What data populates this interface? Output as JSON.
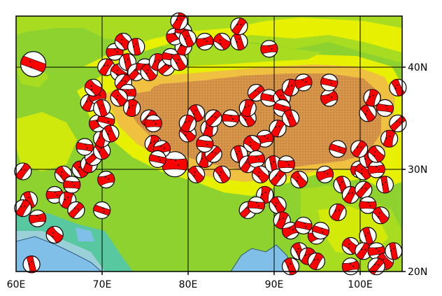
{
  "map": {
    "x_labels": [
      "60E",
      "70E",
      "80E",
      "90E",
      "100E"
    ],
    "y_labels": [
      "40N",
      "30N",
      "20N"
    ],
    "lon_range": [
      60,
      105
    ],
    "lat_range": [
      20,
      45
    ],
    "colors": {
      "ocean": "#7fbfe8",
      "lowland_blue": "#9bd0d8",
      "lowland_teal": "#57c8a0",
      "plain": "#8ed230",
      "hill": "#a8dc20",
      "upland": "#e6f000",
      "mountain": "#f0c040",
      "plateau": "#d7964a",
      "high_plateau": "#c98a48",
      "beachball_fill": "#ff0000",
      "beachball_empty": "#ffffff",
      "outline": "#000000"
    },
    "events": [
      [
        62,
        40.3,
        "large"
      ],
      [
        61.5,
        27,
        "small"
      ],
      [
        60.8,
        26.2,
        "small"
      ],
      [
        62.5,
        25.2,
        "small"
      ],
      [
        64.5,
        23.6,
        "small"
      ],
      [
        61.8,
        20.7,
        "small"
      ],
      [
        60.8,
        29.8,
        "small"
      ],
      [
        64.5,
        27.5,
        "small"
      ],
      [
        65.5,
        29.5,
        "small"
      ],
      [
        66,
        27,
        "small"
      ],
      [
        67,
        26,
        "small"
      ],
      [
        66.5,
        28.5,
        "small"
      ],
      [
        67.5,
        30,
        "small"
      ],
      [
        68.5,
        30.5,
        "small"
      ],
      [
        69,
        31.2,
        "small"
      ],
      [
        68,
        32.2,
        "small"
      ],
      [
        70,
        31.8,
        "small"
      ],
      [
        70,
        33,
        "small"
      ],
      [
        69.5,
        34.5,
        "small"
      ],
      [
        70.5,
        34.8,
        "small"
      ],
      [
        71,
        33.5,
        "small"
      ],
      [
        68.5,
        36.5,
        "small"
      ],
      [
        69.5,
        37.2,
        "small"
      ],
      [
        69,
        38,
        "small"
      ],
      [
        70,
        36,
        "small"
      ],
      [
        70.5,
        40,
        "small"
      ],
      [
        71.5,
        41.5,
        "small"
      ],
      [
        72,
        39.5,
        "small"
      ],
      [
        73,
        40.5,
        "small"
      ],
      [
        72.5,
        38.5,
        "small"
      ],
      [
        73,
        37.5,
        "small"
      ],
      [
        72,
        37,
        "small"
      ],
      [
        73.5,
        36,
        "small"
      ],
      [
        74,
        39.5,
        "small"
      ],
      [
        75,
        40,
        "small"
      ],
      [
        75.5,
        39.5,
        "small"
      ],
      [
        76.5,
        40.5,
        "small"
      ],
      [
        77.5,
        40,
        "small"
      ],
      [
        78,
        41,
        "small"
      ],
      [
        79,
        40.5,
        "small"
      ],
      [
        79.5,
        42,
        "small"
      ],
      [
        78.5,
        43,
        "small"
      ],
      [
        79.5,
        43.5,
        "small"
      ],
      [
        80,
        42.8,
        "small"
      ],
      [
        79,
        44.5,
        "small"
      ],
      [
        82,
        42.5,
        "small"
      ],
      [
        84,
        42.5,
        "small"
      ],
      [
        86,
        42.5,
        "small"
      ],
      [
        86,
        44,
        "small"
      ],
      [
        89.5,
        41.8,
        "small"
      ],
      [
        72.5,
        42.5,
        "small"
      ],
      [
        74,
        42,
        "small"
      ],
      [
        75.5,
        35,
        "small"
      ],
      [
        76,
        34.5,
        "small"
      ],
      [
        80,
        33.5,
        "small"
      ],
      [
        82.5,
        34,
        "small"
      ],
      [
        83,
        35,
        "small"
      ],
      [
        85,
        35,
        "small"
      ],
      [
        87,
        35,
        "small"
      ],
      [
        87,
        36,
        "small"
      ],
      [
        88,
        37.5,
        "small"
      ],
      [
        89.5,
        37,
        "small"
      ],
      [
        91,
        37,
        "small"
      ],
      [
        92,
        38,
        "small"
      ],
      [
        93.5,
        38.5,
        "small"
      ],
      [
        91,
        36,
        "small"
      ],
      [
        92,
        35,
        "small"
      ],
      [
        90.5,
        34,
        "small"
      ],
      [
        89,
        33,
        "small"
      ],
      [
        87.5,
        32.5,
        "small"
      ],
      [
        86,
        31.5,
        "small"
      ],
      [
        87,
        30.5,
        "small"
      ],
      [
        88,
        31,
        "small"
      ],
      [
        88.5,
        29.5,
        "small"
      ],
      [
        90,
        30.5,
        "small"
      ],
      [
        90.5,
        29.2,
        "small"
      ],
      [
        91.5,
        30.5,
        "small"
      ],
      [
        93,
        29,
        "small"
      ],
      [
        89,
        27.5,
        "small"
      ],
      [
        87,
        26,
        "small"
      ],
      [
        88,
        26.5,
        "small"
      ],
      [
        90.5,
        26.5,
        "small"
      ],
      [
        91,
        25,
        "small"
      ],
      [
        92,
        24,
        "small"
      ],
      [
        93.5,
        24.5,
        "small"
      ],
      [
        93,
        22,
        "small"
      ],
      [
        94,
        21.5,
        "small"
      ],
      [
        95,
        23.5,
        "small"
      ],
      [
        95.5,
        24,
        "small"
      ],
      [
        92,
        20.5,
        "small"
      ],
      [
        95,
        21,
        "small"
      ],
      [
        99,
        20.5,
        "small"
      ],
      [
        99,
        22.5,
        "small"
      ],
      [
        101,
        23.5,
        "small"
      ],
      [
        100.5,
        22,
        "small"
      ],
      [
        102,
        22,
        "small"
      ],
      [
        103,
        21,
        "small"
      ],
      [
        104,
        22,
        "small"
      ],
      [
        102,
        20.5,
        "small"
      ],
      [
        78.5,
        30.5,
        "large"
      ],
      [
        81,
        29.5,
        "small"
      ],
      [
        82,
        31,
        "small"
      ],
      [
        83,
        31.5,
        "small"
      ],
      [
        82,
        32.5,
        "small"
      ],
      [
        84,
        29.5,
        "small"
      ],
      [
        76,
        32.5,
        "small"
      ],
      [
        77,
        32,
        "small"
      ],
      [
        76.5,
        31,
        "small"
      ],
      [
        81,
        35.5,
        "small"
      ],
      [
        80,
        34.5,
        "small"
      ],
      [
        96,
        29.5,
        "small"
      ],
      [
        97.5,
        32,
        "small"
      ],
      [
        98,
        28.5,
        "small"
      ],
      [
        99,
        27.5,
        "small"
      ],
      [
        100,
        30,
        "small"
      ],
      [
        100.5,
        29.8,
        "small"
      ],
      [
        101,
        31,
        "small"
      ],
      [
        100,
        32,
        "small"
      ],
      [
        102,
        30,
        "small"
      ],
      [
        102,
        31.5,
        "small"
      ],
      [
        103,
        28.5,
        "small"
      ],
      [
        100.5,
        28,
        "small"
      ],
      [
        101,
        26.5,
        "small"
      ],
      [
        102.5,
        25.5,
        "small"
      ],
      [
        103.5,
        33,
        "small"
      ],
      [
        104.5,
        34.5,
        "small"
      ],
      [
        103,
        36,
        "small"
      ],
      [
        101,
        35.5,
        "small"
      ],
      [
        101.5,
        37,
        "small"
      ],
      [
        96.5,
        37,
        "small"
      ],
      [
        96.5,
        38.5,
        "small"
      ],
      [
        104.5,
        38,
        "small"
      ],
      [
        97.5,
        25.8,
        "small"
      ],
      [
        70.5,
        29,
        "small"
      ],
      [
        70,
        26,
        "small"
      ]
    ]
  }
}
